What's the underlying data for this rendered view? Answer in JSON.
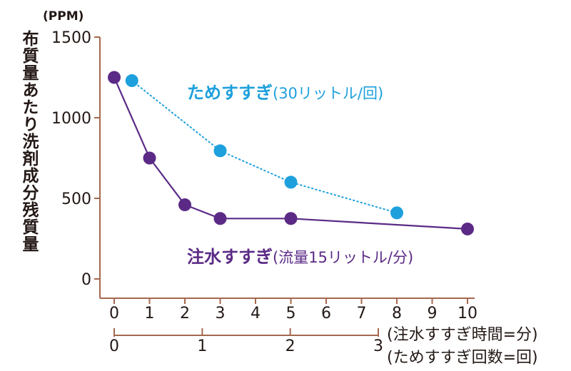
{
  "chart_data": {
    "type": "line",
    "y_unit": "(PPM)",
    "ylabel": "布質量あたり洗剤成分残質量",
    "ylim": [
      0,
      1500
    ],
    "y_ticks": [
      "0",
      "500",
      "1000",
      "1500"
    ],
    "xlim": [
      0,
      10
    ],
    "x_ticks": [
      "0",
      "1",
      "2",
      "3",
      "4",
      "5",
      "6",
      "7",
      "8",
      "9",
      "10"
    ],
    "x_axis_label": "(注水すすぎ時間=分)",
    "secondary_x_ticks": [
      "0",
      "1",
      "2",
      "3"
    ],
    "secondary_x_axis_label": "(ためすすぎ回数=回)",
    "series": [
      {
        "name": "ためすすぎ",
        "detail": "(30リットル/回)",
        "color": "#1ea0dc",
        "style": "dotted",
        "x": [
          0.5,
          3,
          5,
          8
        ],
        "y": [
          1230,
          795,
          600,
          410
        ]
      },
      {
        "name": "注水すすぎ",
        "detail": "(流量15リットル/分)",
        "color": "#5b2a86",
        "style": "solid",
        "x": [
          0,
          1,
          2,
          3,
          5,
          10
        ],
        "y": [
          1250,
          750,
          460,
          375,
          375,
          310
        ]
      }
    ]
  }
}
